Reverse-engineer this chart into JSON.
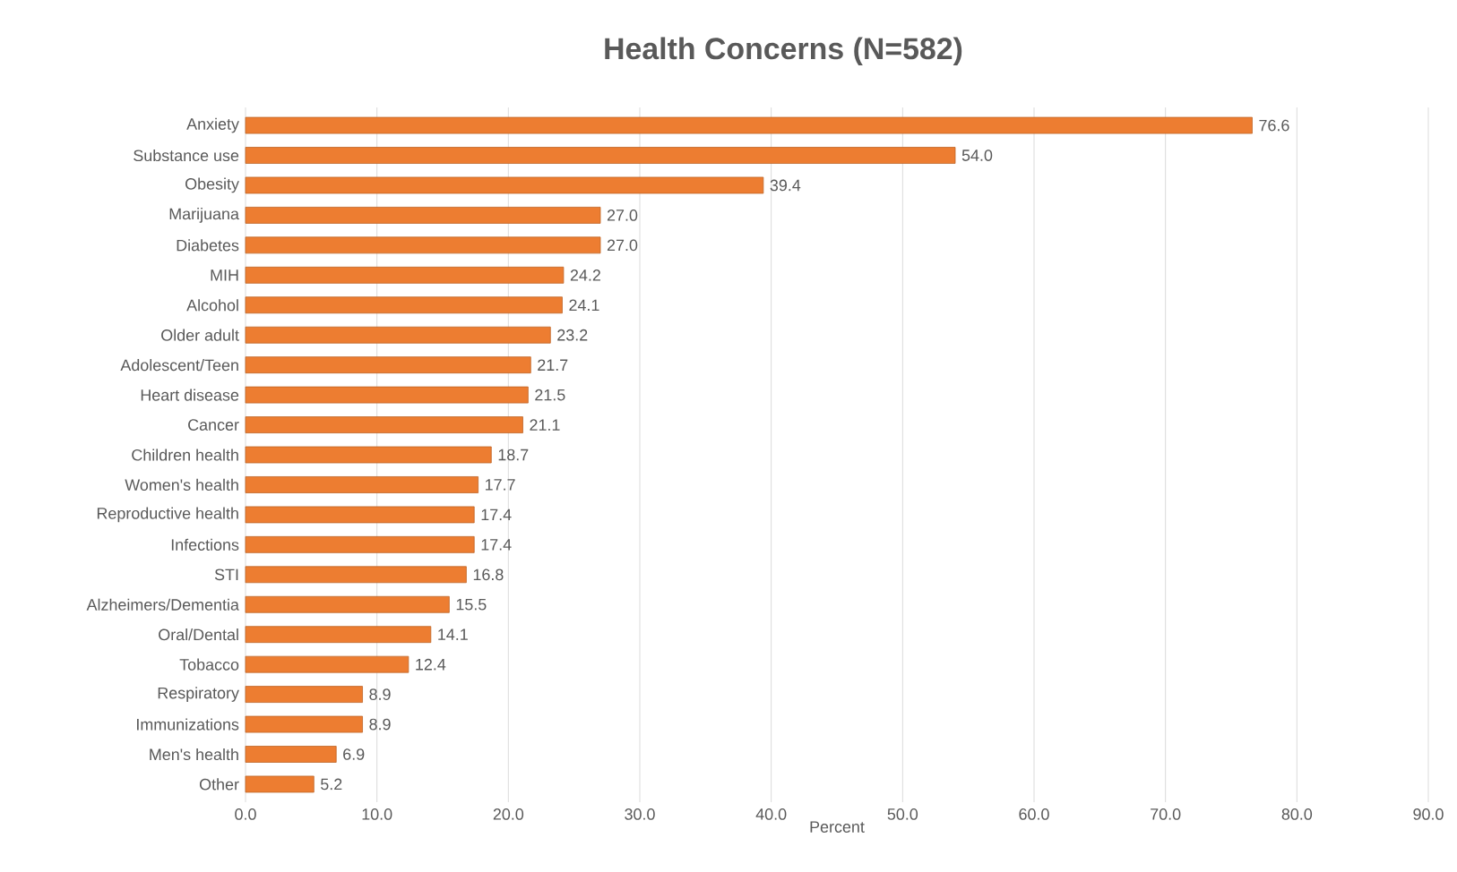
{
  "chart_data": {
    "type": "bar",
    "orientation": "horizontal",
    "title": "Health Concerns (N=582)",
    "xlabel": "Percent",
    "categories": [
      "Anxiety",
      "Substance use",
      "Obesity",
      "Marijuana",
      "Diabetes",
      "MIH",
      "Alcohol",
      "Older adult",
      "Adolescent/Teen",
      "Heart disease",
      "Cancer",
      "Children health",
      "Women's health",
      "Reproductive health",
      "Infections",
      "STI",
      "Alzheimers/Dementia",
      "Oral/Dental",
      "Tobacco",
      "Respiratory",
      "Immunizations",
      "Men's health",
      "Other"
    ],
    "values": [
      76.6,
      54.0,
      39.4,
      27.0,
      27.0,
      24.2,
      24.1,
      23.2,
      21.7,
      21.5,
      21.1,
      18.7,
      17.7,
      17.4,
      17.4,
      16.8,
      15.5,
      14.1,
      12.4,
      8.9,
      8.9,
      6.9,
      5.2
    ],
    "value_labels": [
      "76.6",
      "54.0",
      "39.4",
      "27.0",
      "27.0",
      "24.2",
      "24.1",
      "23.2",
      "21.7",
      "21.5",
      "21.1",
      "18.7",
      "17.7",
      "17.4",
      "17.4",
      "16.8",
      "15.5",
      "14.1",
      "12.4",
      "8.9",
      "8.9",
      "6.9",
      "5.2"
    ],
    "color": "#ed7d31",
    "xlim": [
      0,
      90
    ],
    "xticks": [
      {
        "value": 0,
        "label": "0.0"
      },
      {
        "value": 10,
        "label": "10.0"
      },
      {
        "value": 20,
        "label": "20.0"
      },
      {
        "value": 30,
        "label": "30.0"
      },
      {
        "value": 40,
        "label": "40.0"
      },
      {
        "value": 50,
        "label": "50.0"
      },
      {
        "value": 60,
        "label": "60.0"
      },
      {
        "value": 70,
        "label": "70.0"
      },
      {
        "value": 80,
        "label": "80.0"
      },
      {
        "value": 90,
        "label": "90.0"
      }
    ],
    "grid": "x"
  }
}
